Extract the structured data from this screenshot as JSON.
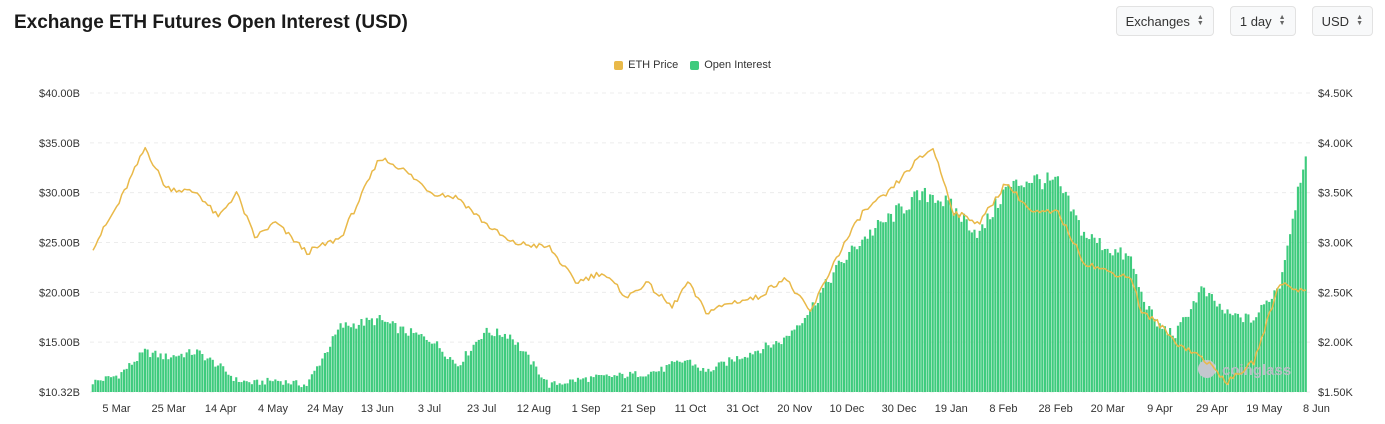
{
  "header": {
    "title": "Exchange ETH Futures Open Interest (USD)"
  },
  "controls": {
    "exchanges": "Exchanges",
    "interval": "1 day",
    "currency": "USD"
  },
  "watermark": {
    "text": "coinglass"
  },
  "colors": {
    "price": "#e9b949",
    "oi": "#3ecb7d",
    "grid": "#ececec",
    "text": "#333333"
  },
  "chart_data": {
    "type": "bar",
    "x_tick_labels": [
      "5 Mar",
      "25 Mar",
      "14 Apr",
      "4 May",
      "24 May",
      "13 Jun",
      "3 Jul",
      "23 Jul",
      "12 Aug",
      "1 Sep",
      "21 Sep",
      "11 Oct",
      "31 Oct",
      "20 Nov",
      "10 Dec",
      "30 Dec",
      "19 Jan",
      "8 Feb",
      "28 Feb",
      "20 Mar",
      "9 Apr",
      "29 Apr",
      "19 May",
      "8 Jun"
    ],
    "y_left_ticks": [
      "$10.32B",
      "$15.00B",
      "$20.00B",
      "$25.00B",
      "$30.00B",
      "$35.00B",
      "$40.00B"
    ],
    "y_right_ticks": [
      "$1.50K",
      "$2.00K",
      "$2.50K",
      "$3.00K",
      "$3.50K",
      "$4.00K",
      "$4.50K"
    ],
    "y_left_range": [
      10.32,
      40
    ],
    "y_right_range": [
      1500,
      4500
    ],
    "grid": true,
    "legend_position": "top-center",
    "series": [
      {
        "name": "ETH Price",
        "type": "line",
        "axis": "right",
        "anchor_offsets": [
          0,
          10,
          20,
          28,
          40,
          48,
          55,
          62,
          70,
          82,
          95,
          110,
          118,
          130,
          140,
          150,
          160,
          175,
          185,
          195,
          205,
          212,
          218,
          222,
          228,
          235,
          245,
          255,
          265,
          275,
          285,
          295,
          305,
          315,
          322,
          330,
          340,
          350,
          360,
          370,
          380,
          390,
          398,
          402,
          408,
          415,
          425,
          435,
          445,
          455,
          465
        ],
        "values": [
          2950,
          3400,
          3950,
          3550,
          3500,
          3250,
          3500,
          3050,
          3200,
          2900,
          3050,
          3850,
          3750,
          3500,
          3450,
          3200,
          3000,
          2950,
          2600,
          2700,
          2450,
          2600,
          2450,
          2350,
          2600,
          2300,
          2400,
          2450,
          2650,
          2300,
          2850,
          3300,
          3500,
          3800,
          3950,
          3300,
          3200,
          3600,
          3300,
          3300,
          2800,
          2700,
          2650,
          2300,
          2200,
          2000,
          1850,
          1600,
          1800,
          2600,
          2500
        ]
      },
      {
        "name": "Open Interest",
        "type": "bar",
        "axis": "left",
        "anchor_offsets": [
          0,
          10,
          20,
          28,
          40,
          48,
          55,
          62,
          70,
          82,
          95,
          110,
          118,
          130,
          140,
          150,
          160,
          175,
          185,
          195,
          205,
          212,
          218,
          222,
          228,
          235,
          245,
          255,
          265,
          275,
          285,
          295,
          305,
          315,
          322,
          330,
          340,
          350,
          360,
          370,
          380,
          390,
          398,
          402,
          408,
          415,
          425,
          435,
          445,
          455,
          465
        ],
        "values": [
          11.3,
          12.0,
          14.3,
          13.8,
          14.3,
          13.0,
          11.5,
          11.2,
          11.5,
          11.0,
          16.8,
          17.5,
          16.5,
          15.5,
          13.0,
          16.3,
          16.0,
          11.0,
          11.5,
          11.8,
          12.0,
          12.2,
          12.5,
          13.0,
          13.5,
          12.3,
          13.5,
          14.5,
          15.5,
          18.5,
          22.5,
          25.5,
          27.5,
          29.5,
          30.0,
          28.5,
          26.0,
          30.5,
          31.5,
          31.0,
          26.0,
          24.5,
          23.5,
          20.0,
          17.0,
          16.0,
          20.5,
          18.0,
          17.5,
          21.0,
          34.5
        ]
      }
    ]
  }
}
